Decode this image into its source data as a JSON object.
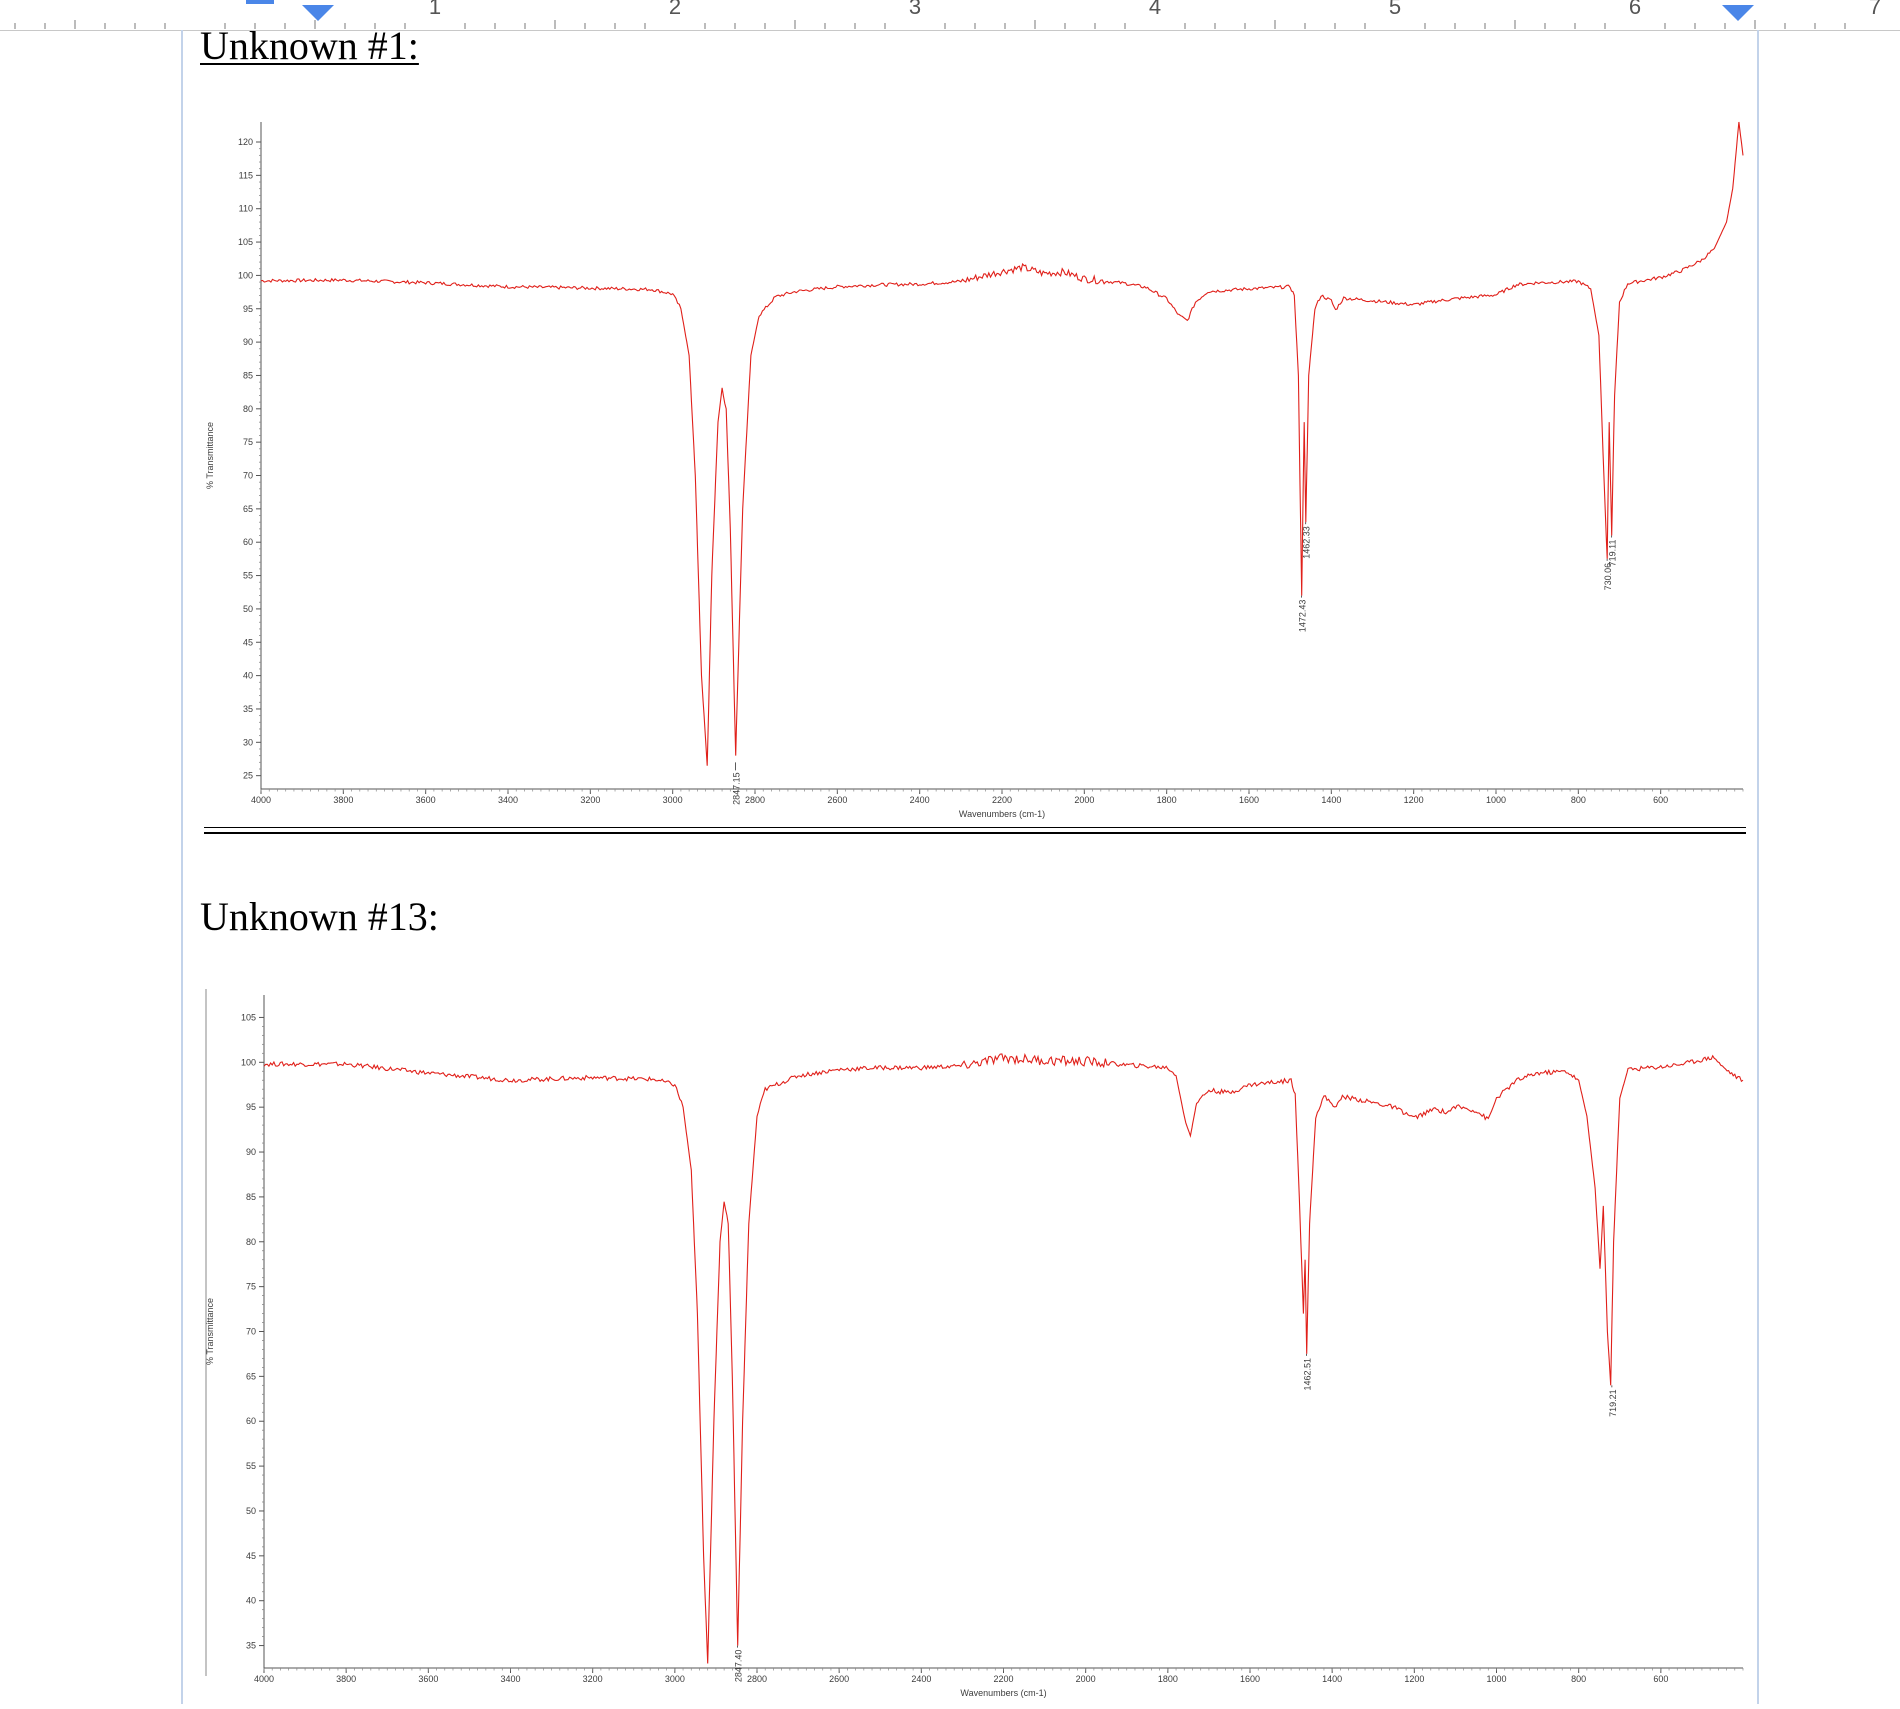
{
  "ruler": {
    "numbers": [
      "1",
      "2",
      "3",
      "4",
      "5",
      "6",
      "7"
    ],
    "accent_color": "#4a86e8"
  },
  "headings": {
    "unknown_1": "Unknown #1:",
    "unknown_13": "Unknown #13:"
  },
  "chart_data": [
    {
      "type": "line",
      "title": "",
      "xlabel": "Wavenumbers (cm-1)",
      "ylabel": "% Transmittance",
      "xlim": [
        4000,
        400
      ],
      "ylim": [
        23,
        123
      ],
      "x_ticks": [
        4000,
        3800,
        3600,
        3400,
        3200,
        3000,
        2800,
        2600,
        2400,
        2200,
        2000,
        1800,
        1600,
        1400,
        1200,
        1000,
        800,
        600
      ],
      "y_ticks": [
        25,
        30,
        35,
        40,
        45,
        50,
        55,
        60,
        65,
        70,
        75,
        80,
        85,
        90,
        95,
        100,
        105,
        110,
        115,
        120
      ],
      "line_color": "#e0201a",
      "grid": false,
      "series": [
        {
          "points": [
            [
              4000,
              99.2
            ],
            [
              3800,
              99.3
            ],
            [
              3600,
              98.9
            ],
            [
              3400,
              98.3
            ],
            [
              3200,
              98.1
            ],
            [
              3050,
              97.9
            ],
            [
              3000,
              97.2
            ],
            [
              2980,
              95
            ],
            [
              2960,
              88
            ],
            [
              2945,
              70
            ],
            [
              2930,
              40
            ],
            [
              2916,
              26.5
            ],
            [
              2905,
              55
            ],
            [
              2890,
              78
            ],
            [
              2880,
              83
            ],
            [
              2870,
              80
            ],
            [
              2860,
              62
            ],
            [
              2847,
              28
            ],
            [
              2830,
              65
            ],
            [
              2810,
              88
            ],
            [
              2790,
              94
            ],
            [
              2750,
              96.8
            ],
            [
              2700,
              97.6
            ],
            [
              2600,
              98.3
            ],
            [
              2500,
              98.6
            ],
            [
              2400,
              98.7
            ],
            [
              2300,
              99.1
            ],
            [
              2200,
              100.6
            ],
            [
              2150,
              101.2
            ],
            [
              2100,
              100.3
            ],
            [
              2050,
              100.5
            ],
            [
              2000,
              99.5
            ],
            [
              1900,
              98.8
            ],
            [
              1850,
              98.2
            ],
            [
              1800,
              96.5
            ],
            [
              1770,
              94
            ],
            [
              1750,
              93.2
            ],
            [
              1730,
              96
            ],
            [
              1700,
              97.6
            ],
            [
              1600,
              98
            ],
            [
              1500,
              98.3
            ],
            [
              1490,
              97
            ],
            [
              1480,
              85
            ],
            [
              1472,
              52
            ],
            [
              1466,
              78
            ],
            [
              1462,
              63
            ],
            [
              1455,
              85
            ],
            [
              1440,
              95
            ],
            [
              1425,
              97
            ],
            [
              1400,
              96.2
            ],
            [
              1390,
              94.8
            ],
            [
              1370,
              96.6
            ],
            [
              1300,
              96.2
            ],
            [
              1200,
              95.6
            ],
            [
              1150,
              96.1
            ],
            [
              1100,
              96.5
            ],
            [
              1000,
              97.1
            ],
            [
              950,
              98.6
            ],
            [
              900,
              98.9
            ],
            [
              800,
              99.1
            ],
            [
              770,
              98
            ],
            [
              750,
              91
            ],
            [
              738,
              70
            ],
            [
              730,
              57.5
            ],
            [
              725,
              78
            ],
            [
              719,
              61
            ],
            [
              712,
              82
            ],
            [
              700,
              96
            ],
            [
              680,
              98.8
            ],
            [
              600,
              99.7
            ],
            [
              550,
              100.7
            ],
            [
              500,
              102.3
            ],
            [
              470,
              104
            ],
            [
              440,
              108
            ],
            [
              425,
              113
            ],
            [
              410,
              123
            ],
            [
              400,
              118
            ]
          ]
        }
      ],
      "peak_labels": [
        {
          "x": 2847.15,
          "label": "2847.15"
        },
        {
          "x": 1472.43,
          "label": "1472.43"
        },
        {
          "x": 1462.33,
          "label": "1462.33"
        },
        {
          "x": 730.06,
          "label": "730.06"
        },
        {
          "x": 719.11,
          "label": "719.11"
        }
      ]
    },
    {
      "type": "line",
      "title": "",
      "xlabel": "Wavenumbers (cm-1)",
      "ylabel": "% Transmittance",
      "xlim": [
        4000,
        400
      ],
      "ylim": [
        32.5,
        107.5
      ],
      "x_ticks": [
        4000,
        3800,
        3600,
        3400,
        3200,
        3000,
        2800,
        2600,
        2400,
        2200,
        2000,
        1800,
        1600,
        1400,
        1200,
        1000,
        800,
        600
      ],
      "y_ticks": [
        35,
        40,
        45,
        50,
        55,
        60,
        65,
        70,
        75,
        80,
        85,
        90,
        95,
        100,
        105
      ],
      "line_color": "#e0201a",
      "grid": false,
      "series": [
        {
          "points": [
            [
              4000,
              99.8
            ],
            [
              3800,
              99.8
            ],
            [
              3600,
              98.8
            ],
            [
              3400,
              98
            ],
            [
              3200,
              98.3
            ],
            [
              3050,
              98.1
            ],
            [
              3000,
              97.5
            ],
            [
              2980,
              95
            ],
            [
              2960,
              88
            ],
            [
              2945,
              72
            ],
            [
              2930,
              45
            ],
            [
              2920,
              33
            ],
            [
              2905,
              60
            ],
            [
              2890,
              80
            ],
            [
              2880,
              84.5
            ],
            [
              2870,
              82
            ],
            [
              2860,
              65
            ],
            [
              2847,
              35
            ],
            [
              2835,
              60
            ],
            [
              2820,
              82
            ],
            [
              2800,
              94
            ],
            [
              2780,
              97
            ],
            [
              2700,
              98.5
            ],
            [
              2600,
              99.2
            ],
            [
              2500,
              99.4
            ],
            [
              2400,
              99.4
            ],
            [
              2300,
              99.6
            ],
            [
              2200,
              100.5
            ],
            [
              2100,
              100.2
            ],
            [
              2000,
              100.1
            ],
            [
              1900,
              99.7
            ],
            [
              1800,
              99.4
            ],
            [
              1780,
              98.5
            ],
            [
              1760,
              94
            ],
            [
              1745,
              91.8
            ],
            [
              1730,
              95.5
            ],
            [
              1700,
              96.9
            ],
            [
              1650,
              96.6
            ],
            [
              1600,
              97.5
            ],
            [
              1500,
              98
            ],
            [
              1490,
              96.5
            ],
            [
              1480,
              85
            ],
            [
              1470,
              72
            ],
            [
              1466,
              78
            ],
            [
              1462,
              67.5
            ],
            [
              1455,
              82
            ],
            [
              1440,
              94
            ],
            [
              1420,
              96.2
            ],
            [
              1390,
              95
            ],
            [
              1375,
              96.2
            ],
            [
              1300,
              95.5
            ],
            [
              1250,
              95
            ],
            [
              1200,
              93.8
            ],
            [
              1150,
              94.8
            ],
            [
              1120,
              94.4
            ],
            [
              1100,
              95.1
            ],
            [
              1050,
              94.6
            ],
            [
              1020,
              93.6
            ],
            [
              1000,
              96
            ],
            [
              950,
              98
            ],
            [
              900,
              98.8
            ],
            [
              830,
              99
            ],
            [
              800,
              98
            ],
            [
              780,
              94
            ],
            [
              760,
              86
            ],
            [
              748,
              77
            ],
            [
              740,
              84
            ],
            [
              730,
              70
            ],
            [
              722,
              64
            ],
            [
              715,
              80
            ],
            [
              700,
              96
            ],
            [
              680,
              99.2
            ],
            [
              600,
              99.5
            ],
            [
              550,
              99.8
            ],
            [
              500,
              100.3
            ],
            [
              470,
              100.6
            ],
            [
              450,
              99.5
            ],
            [
              420,
              98.5
            ],
            [
              400,
              98
            ]
          ]
        }
      ],
      "peak_labels": [
        {
          "x": 2847.4,
          "label": "2847.40"
        },
        {
          "x": 1462.51,
          "label": "1462.51"
        },
        {
          "x": 719.21,
          "label": "719.21"
        }
      ]
    }
  ]
}
